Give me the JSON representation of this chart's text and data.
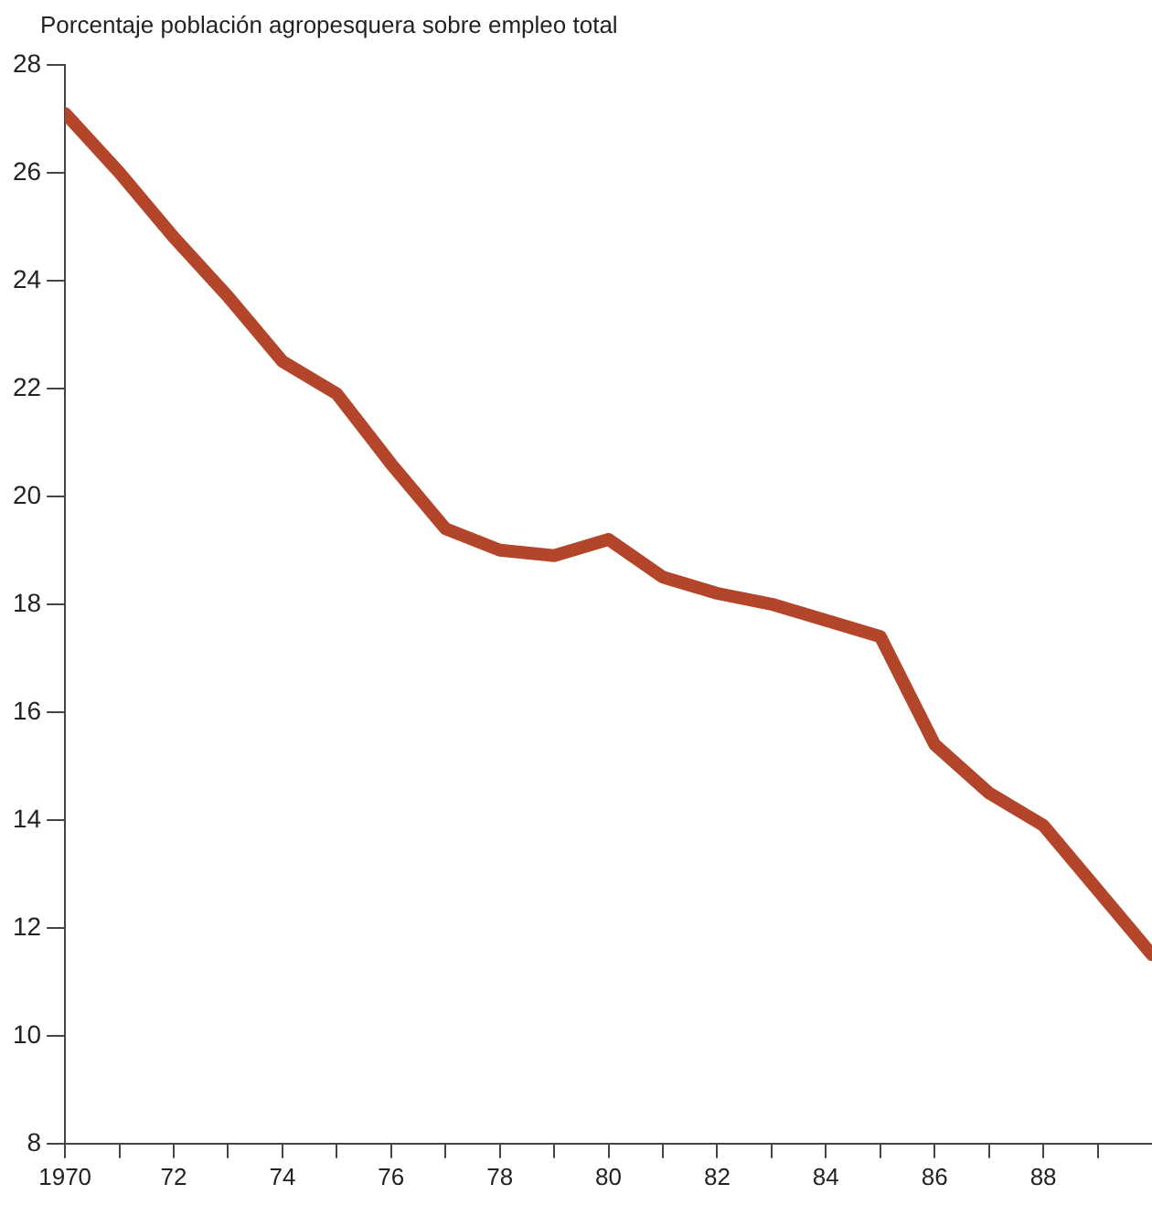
{
  "chart_data": {
    "type": "line",
    "title": "Porcentaje población agropesquera sobre empleo total",
    "x": [
      1970,
      1971,
      1972,
      1973,
      1974,
      1975,
      1976,
      1977,
      1978,
      1979,
      1980,
      1981,
      1982,
      1983,
      1984,
      1985,
      1986,
      1987,
      1988,
      1990
    ],
    "series": [
      {
        "color": "#b3452a",
        "values": [
          27.1,
          26.0,
          24.8,
          23.7,
          22.5,
          21.9,
          20.6,
          19.4,
          19.0,
          18.9,
          19.2,
          18.5,
          18.2,
          18.0,
          17.7,
          17.4,
          15.4,
          14.5,
          13.9,
          11.5
        ]
      }
    ],
    "xlim": [
      1970,
      1990
    ],
    "xticks": [
      {
        "value": 1970,
        "label": "1970"
      },
      {
        "value": 1971,
        "label": null
      },
      {
        "value": 1972,
        "label": "72"
      },
      {
        "value": 1973,
        "label": null
      },
      {
        "value": 1974,
        "label": "74"
      },
      {
        "value": 1975,
        "label": null
      },
      {
        "value": 1976,
        "label": "76"
      },
      {
        "value": 1977,
        "label": null
      },
      {
        "value": 1978,
        "label": "78"
      },
      {
        "value": 1979,
        "label": null
      },
      {
        "value": 1980,
        "label": "80"
      },
      {
        "value": 1981,
        "label": null
      },
      {
        "value": 1982,
        "label": "82"
      },
      {
        "value": 1983,
        "label": null
      },
      {
        "value": 1984,
        "label": "84"
      },
      {
        "value": 1985,
        "label": null
      },
      {
        "value": 1986,
        "label": "86"
      },
      {
        "value": 1987,
        "label": null
      },
      {
        "value": 1988,
        "label": "88"
      },
      {
        "value": 1989,
        "label": null
      }
    ],
    "ylim": [
      8,
      28
    ],
    "yticks": [
      8,
      10,
      12,
      14,
      16,
      18,
      20,
      22,
      24,
      26,
      28
    ],
    "marker": "none",
    "line_style": "solid"
  }
}
